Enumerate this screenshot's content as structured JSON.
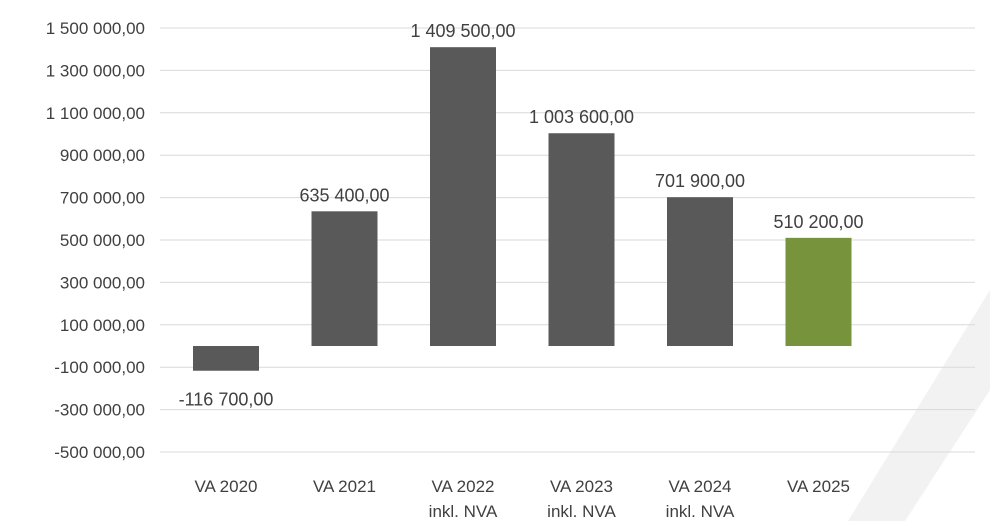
{
  "chart_data": {
    "type": "bar",
    "categories": [
      [
        "VA 2020"
      ],
      [
        "VA 2021"
      ],
      [
        "VA 2022",
        "inkl. NVA"
      ],
      [
        "VA 2023",
        "inkl. NVA"
      ],
      [
        "VA 2024",
        "inkl. NVA"
      ],
      [
        "VA 2025"
      ]
    ],
    "values": [
      -116700,
      635400,
      1409500,
      1003600,
      701900,
      510200
    ],
    "value_labels": [
      "-116 700,00",
      "635 400,00",
      "1 409 500,00",
      "1 003 600,00",
      "701 900,00",
      "510 200,00"
    ],
    "bar_colors": [
      "#595959",
      "#595959",
      "#595959",
      "#595959",
      "#595959",
      "#77933c"
    ],
    "ylim": [
      -500000,
      1500000
    ],
    "yticks": [
      1500000,
      1300000,
      1100000,
      900000,
      700000,
      500000,
      300000,
      100000,
      -100000,
      -300000,
      -500000
    ],
    "ytick_labels": [
      "1 500 000,00",
      "1 300 000,00",
      "1 100 000,00",
      "900 000,00",
      "700 000,00",
      "500 000,00",
      "300 000,00",
      "100 000,00",
      "-100 000,00",
      "-300 000,00",
      "-500 000,00"
    ],
    "grid": true,
    "legend": "none",
    "title": "",
    "xlabel": "",
    "ylabel": ""
  }
}
